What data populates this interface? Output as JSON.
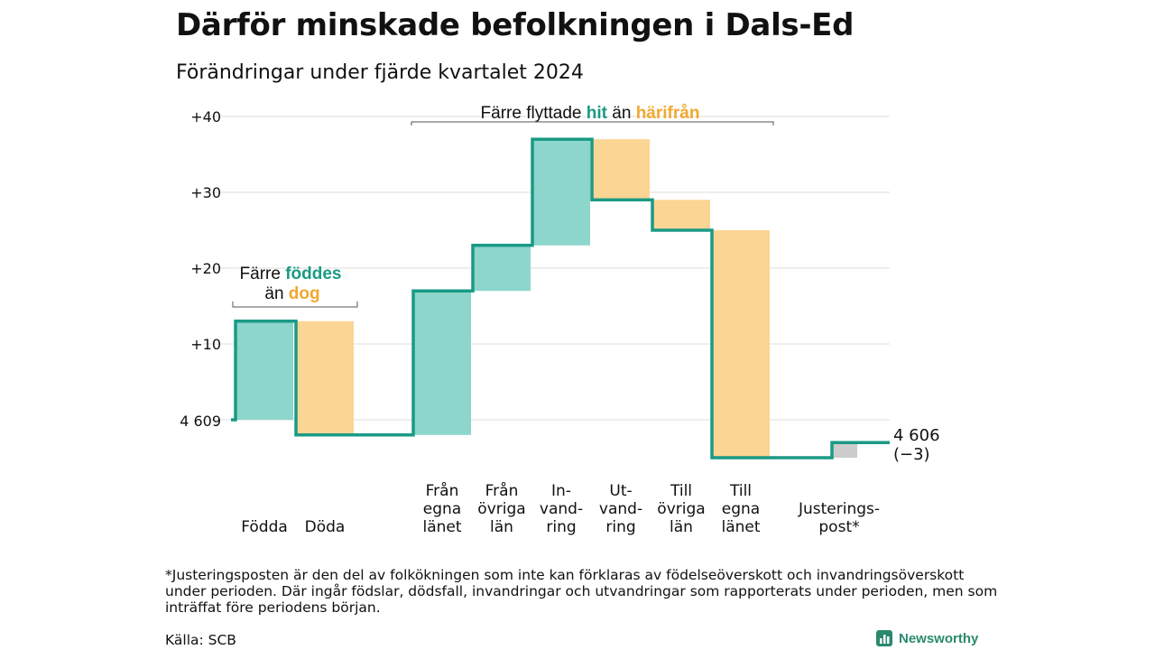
{
  "header": {
    "title": "Därför minskade befolkningen i Dals-Ed",
    "subtitle": "Förändringar under fjärde kvartalet 2024"
  },
  "annotations": {
    "births": {
      "line1_prefix": "Färre ",
      "line1_highlight": "föddes",
      "line2_prefix": "än ",
      "line2_highlight": "dog"
    },
    "moves": {
      "prefix": "Färre flyttade ",
      "highlight1": "hit",
      "middle": " än ",
      "highlight2": "härifrån"
    }
  },
  "end_label": {
    "value": "4 606",
    "change": "(−3)"
  },
  "footnote": "*Justeringsposten är den del av folkökningen som inte kan förklaras av födelseöverskott och invandringsöverskott under perioden. Där ingår födslar, dödsfall, invandringar och utvandringar som rapporterats under perioden, men som inträffat före periodens början.",
  "source": "Källa: SCB",
  "brand": {
    "name": "Newsworthy"
  },
  "colors": {
    "increase_fill": "#8dd6cc",
    "decrease_fill": "#fbd594",
    "adjustment_fill": "#cccccc",
    "step_line": "#1a9a85",
    "grid": "#dddddd",
    "highlight_increase": "#1a9a85",
    "highlight_decrease": "#f0a830"
  },
  "chart_data": {
    "type": "waterfall",
    "start_label": "4 609",
    "start_value": 4609,
    "end_value": 4606,
    "yticks": [
      {
        "offset": 10,
        "label": "+10"
      },
      {
        "offset": 20,
        "label": "+20"
      },
      {
        "offset": 30,
        "label": "+30"
      },
      {
        "offset": 40,
        "label": "+40"
      }
    ],
    "ylim_offset": [
      -6,
      42
    ],
    "steps": [
      {
        "category": [
          "Födda"
        ],
        "change": 13,
        "kind": "increase"
      },
      {
        "category": [
          "Döda"
        ],
        "change": -15,
        "kind": "decrease"
      },
      {
        "category": [
          "Från",
          "egna",
          "länet"
        ],
        "change": 19,
        "kind": "increase"
      },
      {
        "category": [
          "Från",
          "övriga",
          "län"
        ],
        "change": 6,
        "kind": "increase"
      },
      {
        "category": [
          "In-",
          "vand-",
          "ring"
        ],
        "change": 14,
        "kind": "increase"
      },
      {
        "category": [
          "Ut-",
          "vand-",
          "ring"
        ],
        "change": -8,
        "kind": "decrease"
      },
      {
        "category": [
          "Till",
          "övriga",
          "län"
        ],
        "change": -4,
        "kind": "decrease"
      },
      {
        "category": [
          "Till",
          "egna",
          "länet"
        ],
        "change": -30,
        "kind": "decrease"
      },
      {
        "category": [
          "Justerings-",
          "post*"
        ],
        "change": 2,
        "kind": "adjustment"
      }
    ]
  }
}
